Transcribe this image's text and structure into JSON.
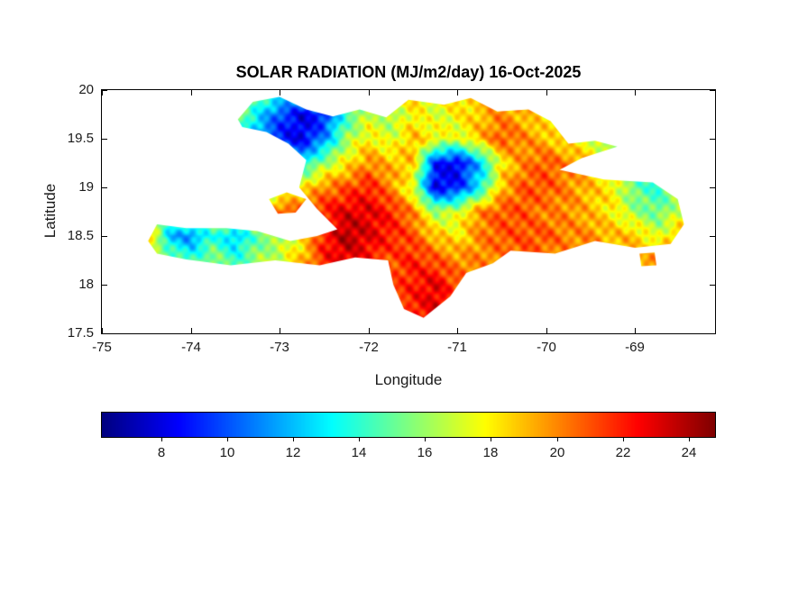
{
  "title": "SOLAR RADIATION (MJ/m2/day) 16-Oct-2025",
  "axes": {
    "xlabel": "Longitude",
    "ylabel": "Latitude",
    "xlim": [
      -75,
      -68.1
    ],
    "ylim": [
      17.5,
      20
    ],
    "xticks": [
      -75,
      -74,
      -73,
      -72,
      -71,
      -70,
      -69
    ],
    "xtick_labels": [
      "-75",
      "-74",
      "-73",
      "-72",
      "-71",
      "-70",
      "-69"
    ],
    "yticks": [
      20,
      19.5,
      19,
      18.5,
      18,
      17.5
    ],
    "ytick_labels": [
      "20",
      "19.5",
      "19",
      "18.5",
      "18",
      "17.5"
    ]
  },
  "colorbar": {
    "orientation": "horizontal",
    "colormap": "jet",
    "range": [
      6.2,
      24.8
    ],
    "ticks": [
      8,
      10,
      12,
      14,
      16,
      18,
      20,
      22,
      24
    ],
    "tick_labels": [
      "8",
      "10",
      "12",
      "14",
      "16",
      "18",
      "20",
      "22",
      "24"
    ]
  },
  "chart_data": {
    "type": "heatmap",
    "title": "SOLAR RADIATION (MJ/m2/day) 16-Oct-2025",
    "variable": "Solar radiation",
    "units": "MJ/m2/day",
    "date": "16-Oct-2025",
    "xlabel": "Longitude",
    "ylabel": "Latitude",
    "xlim": [
      -75,
      -68.1
    ],
    "ylim": [
      17.5,
      20
    ],
    "value_range": [
      6.2,
      24.8
    ],
    "grid": {
      "lon_start": -74.5,
      "lon_step": 0.25,
      "lat_start": 20.0,
      "lat_step": -0.25,
      "ncols": 26,
      "nrows": 11,
      "values": [
        [
          16,
          16,
          16,
          16,
          17,
          16,
          14,
          15,
          16,
          17,
          18,
          18,
          19,
          18,
          19,
          18,
          19,
          20,
          19,
          18,
          17,
          17,
          16,
          16,
          17,
          17
        ],
        [
          15,
          15,
          15,
          15,
          16,
          13,
          10,
          8,
          9,
          14,
          17,
          16,
          18,
          17,
          18,
          19,
          20,
          19,
          18,
          17,
          16,
          16,
          15,
          16,
          17,
          18
        ],
        [
          15,
          15,
          15,
          15,
          15,
          11,
          9,
          8,
          11,
          16,
          18,
          17,
          19,
          18,
          17,
          19,
          21,
          20,
          19,
          18,
          17,
          15,
          14,
          16,
          18,
          18
        ],
        [
          16,
          16,
          16,
          16,
          16,
          14,
          12,
          13,
          16,
          18,
          20,
          19,
          19,
          9,
          8,
          12,
          18,
          20,
          21,
          20,
          19,
          17,
          15,
          15,
          17,
          19
        ],
        [
          17,
          17,
          16,
          16,
          17,
          16,
          16,
          18,
          20,
          21,
          22,
          20,
          17,
          8,
          9,
          13,
          19,
          21,
          21,
          20,
          19,
          18,
          15,
          14,
          16,
          18
        ],
        [
          18,
          17,
          16,
          18,
          17,
          18,
          21,
          21,
          22,
          23,
          23,
          22,
          20,
          16,
          17,
          20,
          21,
          21,
          20,
          20,
          19,
          18,
          16,
          15,
          17,
          19
        ],
        [
          20,
          12,
          11,
          14,
          12,
          15,
          16,
          18,
          22,
          24,
          23,
          22,
          21,
          19,
          18,
          20,
          21,
          21,
          21,
          20,
          20,
          19,
          19,
          17,
          19,
          20
        ],
        [
          19,
          16,
          14,
          16,
          14,
          16,
          17,
          19,
          22,
          23,
          22,
          21,
          22,
          21,
          20,
          20,
          20,
          21,
          20,
          20,
          20,
          19,
          19,
          20,
          20,
          20
        ],
        [
          19,
          18,
          16,
          16,
          15,
          17,
          18,
          19,
          21,
          22,
          22,
          21,
          22,
          23,
          21,
          20,
          20,
          20,
          20,
          20,
          20,
          19,
          19,
          20,
          20,
          20
        ],
        [
          20,
          19,
          18,
          17,
          17,
          18,
          19,
          20,
          21,
          21,
          21,
          21,
          22,
          23,
          21,
          20,
          20,
          20,
          20,
          20,
          20,
          20,
          20,
          20,
          20,
          20
        ],
        [
          20,
          20,
          19,
          18,
          18,
          19,
          19,
          20,
          21,
          21,
          21,
          21,
          22,
          22,
          21,
          20,
          20,
          20,
          20,
          20,
          20,
          20,
          20,
          20,
          20,
          20
        ]
      ]
    },
    "region_outlines": {
      "hispaniola": [
        [
          -73.47,
          19.7
        ],
        [
          -73.3,
          19.88
        ],
        [
          -73.0,
          19.93
        ],
        [
          -72.7,
          19.8
        ],
        [
          -72.4,
          19.73
        ],
        [
          -72.1,
          19.8
        ],
        [
          -71.8,
          19.72
        ],
        [
          -71.55,
          19.9
        ],
        [
          -71.15,
          19.85
        ],
        [
          -70.85,
          19.92
        ],
        [
          -70.55,
          19.78
        ],
        [
          -70.2,
          19.8
        ],
        [
          -69.95,
          19.68
        ],
        [
          -69.75,
          19.45
        ],
        [
          -69.45,
          19.48
        ],
        [
          -69.2,
          19.42
        ],
        [
          -69.6,
          19.3
        ],
        [
          -69.85,
          19.18
        ],
        [
          -69.35,
          19.08
        ],
        [
          -68.8,
          19.05
        ],
        [
          -68.52,
          18.88
        ],
        [
          -68.45,
          18.62
        ],
        [
          -68.6,
          18.42
        ],
        [
          -69.0,
          18.38
        ],
        [
          -69.45,
          18.45
        ],
        [
          -69.9,
          18.32
        ],
        [
          -70.4,
          18.35
        ],
        [
          -70.6,
          18.22
        ],
        [
          -70.9,
          18.12
        ],
        [
          -71.08,
          17.88
        ],
        [
          -71.38,
          17.66
        ],
        [
          -71.6,
          17.75
        ],
        [
          -71.72,
          18.0
        ],
        [
          -71.78,
          18.25
        ],
        [
          -72.15,
          18.28
        ],
        [
          -72.55,
          18.2
        ],
        [
          -73.05,
          18.25
        ],
        [
          -73.55,
          18.2
        ],
        [
          -74.05,
          18.26
        ],
        [
          -74.38,
          18.32
        ],
        [
          -74.48,
          18.45
        ],
        [
          -74.38,
          18.62
        ],
        [
          -74.05,
          18.58
        ],
        [
          -73.6,
          18.58
        ],
        [
          -73.25,
          18.55
        ],
        [
          -72.88,
          18.45
        ],
        [
          -72.58,
          18.5
        ],
        [
          -72.35,
          18.57
        ],
        [
          -72.58,
          18.78
        ],
        [
          -72.78,
          19.0
        ],
        [
          -72.7,
          19.28
        ],
        [
          -72.9,
          19.45
        ],
        [
          -73.15,
          19.57
        ],
        [
          -73.42,
          19.62
        ]
      ],
      "gonave": [
        [
          -73.12,
          18.88
        ],
        [
          -72.92,
          18.95
        ],
        [
          -72.7,
          18.88
        ],
        [
          -72.82,
          18.74
        ],
        [
          -73.02,
          18.73
        ]
      ],
      "saona": [
        [
          -68.95,
          18.32
        ],
        [
          -68.78,
          18.33
        ],
        [
          -68.76,
          18.2
        ],
        [
          -68.93,
          18.19
        ]
      ]
    }
  }
}
